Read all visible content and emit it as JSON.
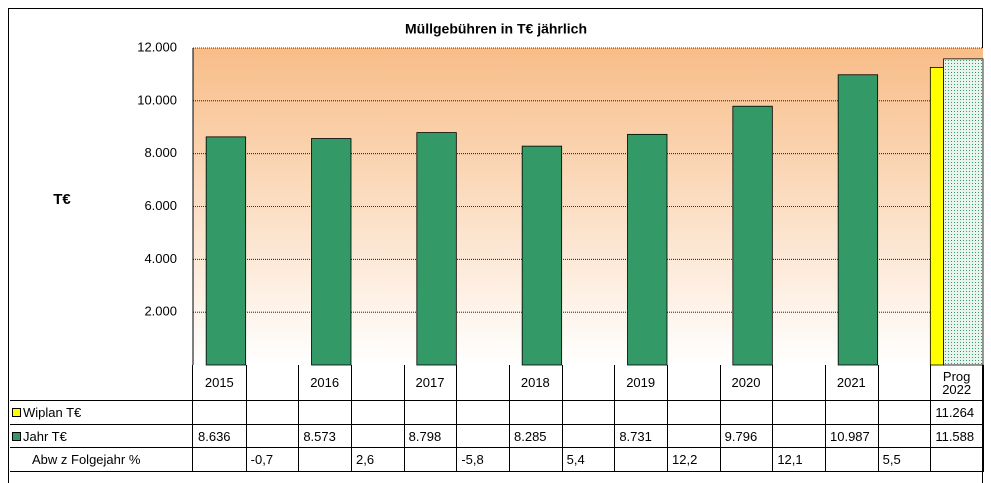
{
  "chart_data": {
    "type": "bar",
    "title": "Müllgebühren in T€ jährlich",
    "y_label": "T€",
    "categories": [
      "2015",
      null,
      "2016",
      null,
      "2017",
      null,
      "2018",
      null,
      "2019",
      null,
      "2020",
      null,
      "2021",
      null,
      "Prog 2022"
    ],
    "series": [
      {
        "name": "Wiplan T€",
        "color": "#ffff00",
        "values": [
          null,
          null,
          null,
          null,
          null,
          null,
          null,
          null,
          null,
          null,
          null,
          null,
          null,
          null,
          11264
        ],
        "value_labels": [
          null,
          null,
          null,
          null,
          null,
          null,
          null,
          null,
          null,
          null,
          null,
          null,
          null,
          null,
          "11.264"
        ]
      },
      {
        "name": "Jahr T€",
        "color": "#339966",
        "patterned_points": [
          14
        ],
        "values": [
          8636,
          null,
          8573,
          null,
          8798,
          null,
          8285,
          null,
          8731,
          null,
          9796,
          null,
          10987,
          null,
          11588
        ],
        "value_labels": [
          "8.636",
          null,
          "8.573",
          null,
          "8.798",
          null,
          "8.285",
          null,
          "8.731",
          null,
          "9.796",
          null,
          "10.987",
          null,
          "11.588"
        ]
      }
    ],
    "table_rows": [
      {
        "name": "Abw z Folgejahr %",
        "values": [
          null,
          -0.7,
          null,
          2.6,
          null,
          -5.8,
          null,
          5.4,
          null,
          12.2,
          null,
          12.1,
          null,
          5.5,
          null
        ],
        "value_labels": [
          null,
          "-0,7",
          null,
          "2,6",
          null,
          "-5,8",
          null,
          "5,4",
          null,
          "12,2",
          null,
          "12,1",
          null,
          "5,5",
          null
        ]
      }
    ],
    "ylim": [
      0,
      12000
    ],
    "yticks": [
      {
        "value": 2000,
        "label": "2.000"
      },
      {
        "value": 4000,
        "label": "4.000"
      },
      {
        "value": 6000,
        "label": "6.000"
      },
      {
        "value": 8000,
        "label": "8.000"
      },
      {
        "value": 10000,
        "label": "10.000"
      },
      {
        "value": 12000,
        "label": "12.000"
      }
    ],
    "grid": true
  }
}
